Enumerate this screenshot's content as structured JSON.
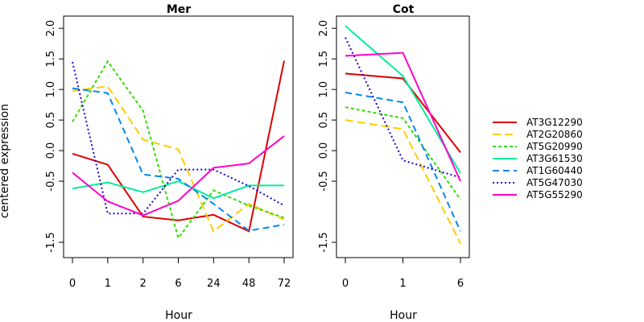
{
  "ylabel": "centered expression",
  "legend": {
    "placement": "right"
  },
  "chart_data": [
    {
      "type": "line",
      "title": "Mer",
      "xlabel": "Hour",
      "categories": [
        "0",
        "1",
        "2",
        "6",
        "24",
        "48",
        "72"
      ],
      "ylim": [
        -1.75,
        2.2
      ],
      "yticks": [
        "-1.5",
        "-0.5",
        "0.0",
        "0.5",
        "1.0",
        "1.5",
        "2.0"
      ],
      "ytick_values": [
        -1.5,
        -0.5,
        0.0,
        0.5,
        1.0,
        1.5,
        2.0
      ],
      "series": [
        {
          "name": "AT3G12290",
          "color": "#dd0000",
          "dash": "solid",
          "values": [
            -0.05,
            -0.23,
            -1.08,
            -1.14,
            -1.05,
            -1.32,
            1.47
          ]
        },
        {
          "name": "AT2G20860",
          "color": "#ffcc00",
          "dash": "long",
          "values": [
            0.98,
            1.05,
            0.18,
            0.02,
            -1.32,
            -0.87,
            -1.13
          ]
        },
        {
          "name": "AT5G20990",
          "color": "#33dd00",
          "dash": "short",
          "values": [
            0.47,
            1.46,
            0.65,
            -1.43,
            -0.65,
            -0.9,
            -1.1
          ]
        },
        {
          "name": "AT3G61530",
          "color": "#00ee99",
          "dash": "solid",
          "values": [
            -0.62,
            -0.52,
            -0.68,
            -0.5,
            -0.78,
            -0.57,
            -0.57
          ]
        },
        {
          "name": "AT1G60440",
          "color": "#0088ee",
          "dash": "medium",
          "values": [
            1.02,
            0.94,
            -0.39,
            -0.46,
            -0.87,
            -1.31,
            -1.21
          ]
        },
        {
          "name": "AT5G47030",
          "color": "#2200cc",
          "dash": "dot",
          "values": [
            1.45,
            -1.03,
            -1.03,
            -0.31,
            -0.31,
            -0.58,
            -0.9
          ]
        },
        {
          "name": "AT5G55290",
          "color": "#ff00cc",
          "dash": "solid",
          "values": [
            -0.36,
            -0.83,
            -1.06,
            -0.82,
            -0.28,
            -0.21,
            0.24
          ]
        }
      ]
    },
    {
      "type": "line",
      "title": "Cot",
      "xlabel": "Hour",
      "categories": [
        "0",
        "1",
        "6"
      ],
      "ylim": [
        -1.75,
        2.2
      ],
      "yticks": [
        "-1.5",
        "-0.5",
        "0.0",
        "0.5",
        "1.0",
        "1.5",
        "2.0"
      ],
      "ytick_values": [
        -1.5,
        -0.5,
        0.0,
        0.5,
        1.0,
        1.5,
        2.0
      ],
      "series": [
        {
          "name": "AT3G12290",
          "color": "#dd0000",
          "dash": "solid",
          "values": [
            1.26,
            1.18,
            -0.03
          ]
        },
        {
          "name": "AT2G20860",
          "color": "#ffcc00",
          "dash": "long",
          "values": [
            0.5,
            0.35,
            -1.52
          ]
        },
        {
          "name": "AT5G20990",
          "color": "#33dd00",
          "dash": "short",
          "values": [
            0.71,
            0.53,
            -0.8
          ]
        },
        {
          "name": "AT3G61530",
          "color": "#00ee99",
          "dash": "solid",
          "values": [
            2.04,
            1.22,
            -0.37
          ]
        },
        {
          "name": "AT1G60440",
          "color": "#0088ee",
          "dash": "medium",
          "values": [
            0.95,
            0.79,
            -1.32
          ]
        },
        {
          "name": "AT5G47030",
          "color": "#2200cc",
          "dash": "dot",
          "values": [
            1.85,
            -0.16,
            -0.44
          ]
        },
        {
          "name": "AT5G55290",
          "color": "#ff00cc",
          "dash": "solid",
          "values": [
            1.55,
            1.6,
            -0.5
          ]
        }
      ]
    }
  ]
}
